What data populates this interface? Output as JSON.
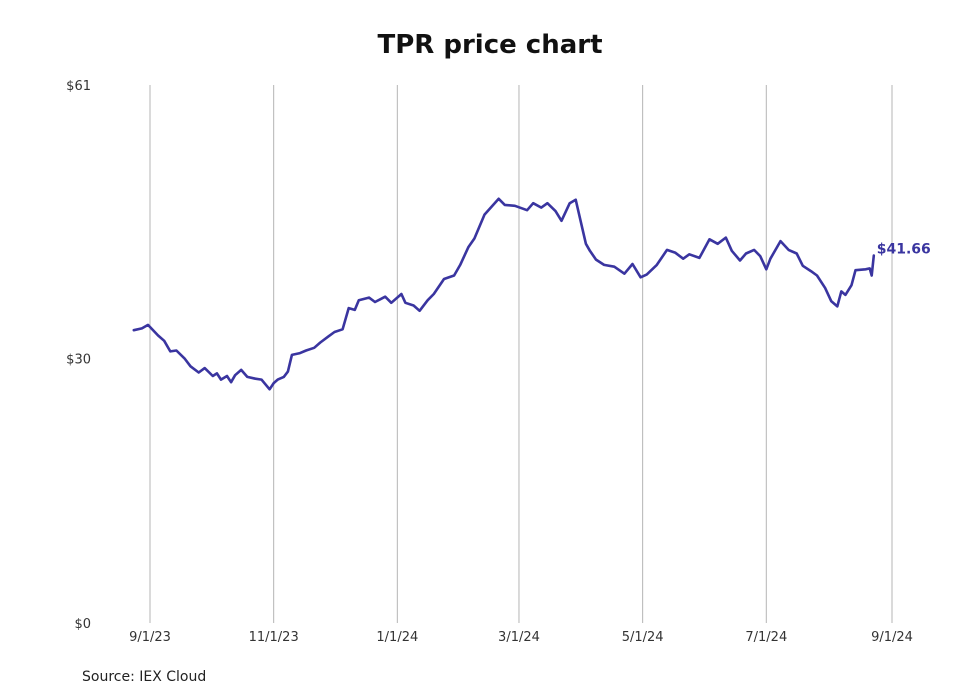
{
  "chart_data": {
    "type": "line",
    "title": "TPR price chart",
    "xlabel": "",
    "ylabel": "",
    "ylim": [
      0,
      61
    ],
    "y_ticks": [
      0,
      30,
      61
    ],
    "y_tick_labels": [
      "$0",
      "$30",
      "$61"
    ],
    "x_ticks": [
      "2023-09-01",
      "2023-11-01",
      "2024-01-01",
      "2024-03-01",
      "2024-05-01",
      "2024-07-01",
      "2024-09-01"
    ],
    "x_tick_labels": [
      "9/1/23",
      "11/1/23",
      "1/1/24",
      "3/1/24",
      "5/1/24",
      "7/1/24",
      "9/1/24"
    ],
    "grid": "vertical",
    "line_color": "#3a35a0",
    "end_label": "$41.66",
    "series": [
      {
        "points": [
          [
            "2023-08-24",
            33.2
          ],
          [
            "2023-08-28",
            33.4
          ],
          [
            "2023-08-31",
            33.8
          ],
          [
            "2023-09-05",
            32.6
          ],
          [
            "2023-09-08",
            32.0
          ],
          [
            "2023-09-11",
            30.8
          ],
          [
            "2023-09-14",
            30.9
          ],
          [
            "2023-09-18",
            30.0
          ],
          [
            "2023-09-21",
            29.1
          ],
          [
            "2023-09-25",
            28.4
          ],
          [
            "2023-09-28",
            28.9
          ],
          [
            "2023-10-02",
            28.0
          ],
          [
            "2023-10-04",
            28.3
          ],
          [
            "2023-10-06",
            27.6
          ],
          [
            "2023-10-09",
            28.0
          ],
          [
            "2023-10-11",
            27.3
          ],
          [
            "2023-10-13",
            28.1
          ],
          [
            "2023-10-16",
            28.7
          ],
          [
            "2023-10-19",
            27.9
          ],
          [
            "2023-10-23",
            27.7
          ],
          [
            "2023-10-26",
            27.6
          ],
          [
            "2023-10-30",
            26.5
          ],
          [
            "2023-11-01",
            27.2
          ],
          [
            "2023-11-03",
            27.6
          ],
          [
            "2023-11-06",
            27.9
          ],
          [
            "2023-11-08",
            28.5
          ],
          [
            "2023-11-10",
            30.4
          ],
          [
            "2023-11-14",
            30.6
          ],
          [
            "2023-11-17",
            30.9
          ],
          [
            "2023-11-21",
            31.2
          ],
          [
            "2023-11-24",
            31.8
          ],
          [
            "2023-11-28",
            32.5
          ],
          [
            "2023-12-01",
            33.0
          ],
          [
            "2023-12-05",
            33.3
          ],
          [
            "2023-12-08",
            35.7
          ],
          [
            "2023-12-11",
            35.5
          ],
          [
            "2023-12-13",
            36.6
          ],
          [
            "2023-12-18",
            36.9
          ],
          [
            "2023-12-21",
            36.4
          ],
          [
            "2023-12-26",
            37.0
          ],
          [
            "2023-12-29",
            36.3
          ],
          [
            "2024-01-03",
            37.3
          ],
          [
            "2024-01-05",
            36.3
          ],
          [
            "2024-01-09",
            36.0
          ],
          [
            "2024-01-12",
            35.4
          ],
          [
            "2024-01-16",
            36.6
          ],
          [
            "2024-01-19",
            37.3
          ],
          [
            "2024-01-24",
            39.0
          ],
          [
            "2024-01-29",
            39.4
          ],
          [
            "2024-02-01",
            40.6
          ],
          [
            "2024-02-05",
            42.6
          ],
          [
            "2024-02-08",
            43.6
          ],
          [
            "2024-02-13",
            46.3
          ],
          [
            "2024-02-20",
            48.1
          ],
          [
            "2024-02-23",
            47.4
          ],
          [
            "2024-02-28",
            47.3
          ],
          [
            "2024-03-05",
            46.8
          ],
          [
            "2024-03-08",
            47.6
          ],
          [
            "2024-03-12",
            47.1
          ],
          [
            "2024-03-15",
            47.6
          ],
          [
            "2024-03-19",
            46.7
          ],
          [
            "2024-03-22",
            45.6
          ],
          [
            "2024-03-26",
            47.6
          ],
          [
            "2024-03-29",
            48.0
          ],
          [
            "2024-04-03",
            43.0
          ],
          [
            "2024-04-05",
            42.2
          ],
          [
            "2024-04-08",
            41.2
          ],
          [
            "2024-04-12",
            40.6
          ],
          [
            "2024-04-17",
            40.4
          ],
          [
            "2024-04-22",
            39.6
          ],
          [
            "2024-04-26",
            40.7
          ],
          [
            "2024-04-30",
            39.2
          ],
          [
            "2024-05-03",
            39.5
          ],
          [
            "2024-05-08",
            40.6
          ],
          [
            "2024-05-13",
            42.3
          ],
          [
            "2024-05-17",
            42.0
          ],
          [
            "2024-05-21",
            41.3
          ],
          [
            "2024-05-24",
            41.8
          ],
          [
            "2024-05-29",
            41.4
          ],
          [
            "2024-06-03",
            43.5
          ],
          [
            "2024-06-07",
            43.0
          ],
          [
            "2024-06-11",
            43.7
          ],
          [
            "2024-06-14",
            42.2
          ],
          [
            "2024-06-18",
            41.1
          ],
          [
            "2024-06-21",
            41.9
          ],
          [
            "2024-06-25",
            42.3
          ],
          [
            "2024-06-28",
            41.6
          ],
          [
            "2024-07-01",
            40.1
          ],
          [
            "2024-07-03",
            41.3
          ],
          [
            "2024-07-08",
            43.3
          ],
          [
            "2024-07-12",
            42.3
          ],
          [
            "2024-07-16",
            41.9
          ],
          [
            "2024-07-19",
            40.5
          ],
          [
            "2024-07-23",
            39.9
          ],
          [
            "2024-07-26",
            39.4
          ],
          [
            "2024-07-30",
            38.0
          ],
          [
            "2024-08-02",
            36.5
          ],
          [
            "2024-08-05",
            35.9
          ],
          [
            "2024-08-07",
            37.6
          ],
          [
            "2024-08-09",
            37.2
          ],
          [
            "2024-08-12",
            38.3
          ],
          [
            "2024-08-14",
            40.0
          ],
          [
            "2024-08-19",
            40.1
          ],
          [
            "2024-08-21",
            40.2
          ],
          [
            "2024-08-22",
            39.4
          ],
          [
            "2024-08-23",
            41.66
          ]
        ]
      }
    ]
  },
  "footer": {
    "source": "Source: IEX Cloud"
  }
}
